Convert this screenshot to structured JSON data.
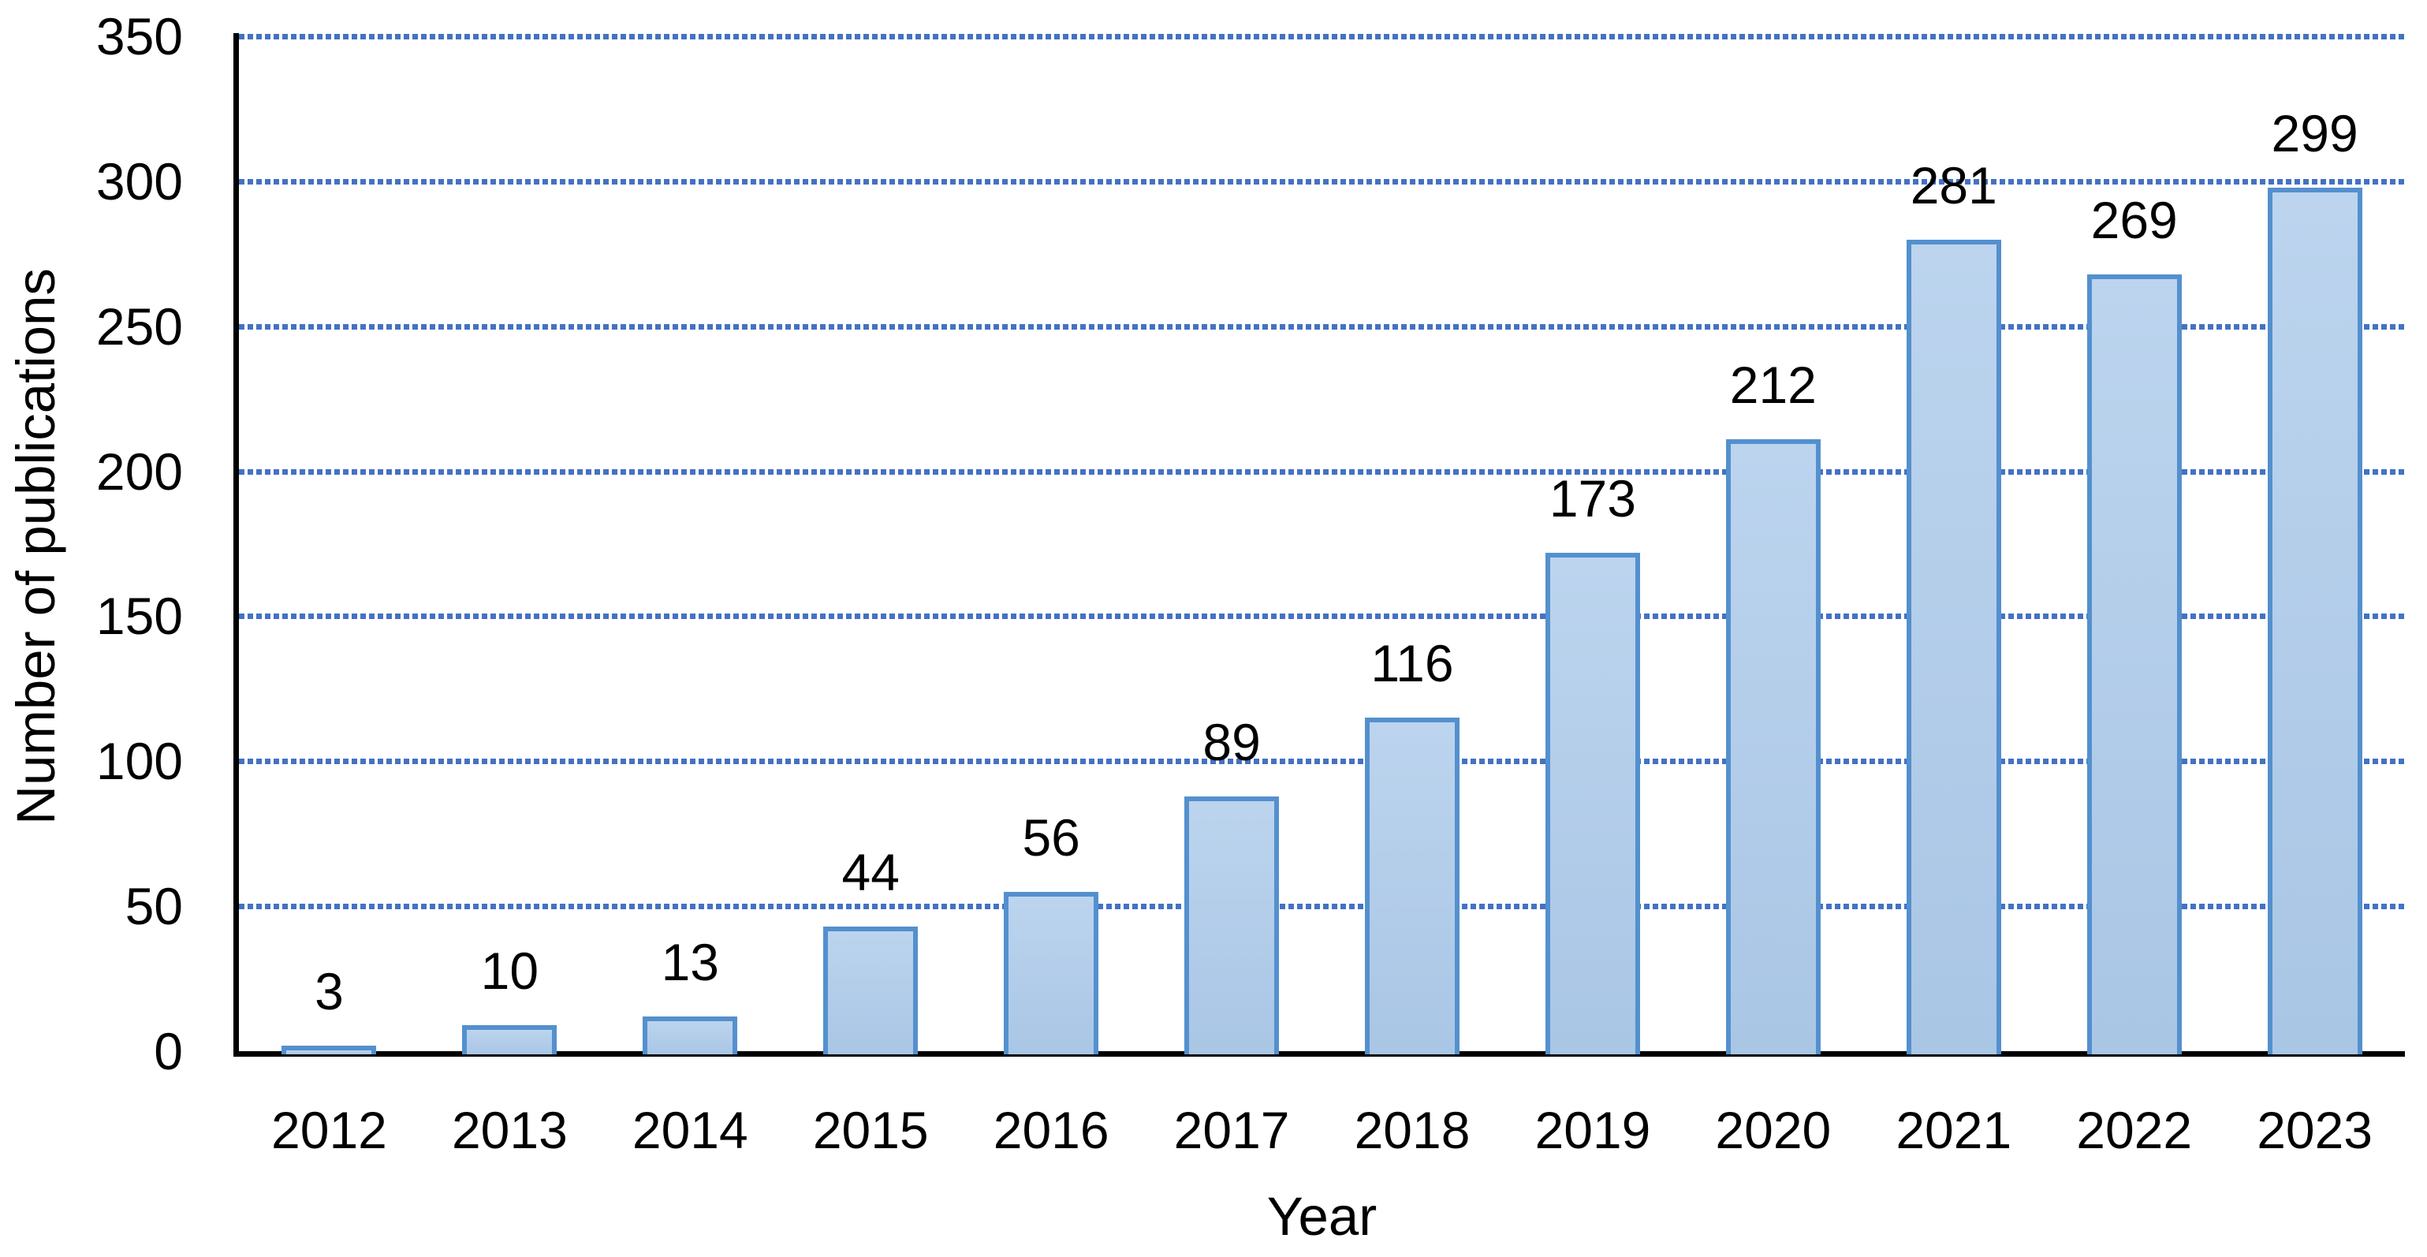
{
  "chart_data": {
    "type": "bar",
    "title": "",
    "categories": [
      "2012",
      "2013",
      "2014",
      "2015",
      "2016",
      "2017",
      "2018",
      "2019",
      "2020",
      "2021",
      "2022",
      "2023"
    ],
    "values": [
      3,
      10,
      13,
      44,
      56,
      89,
      116,
      173,
      212,
      281,
      269,
      299
    ],
    "data_labels": [
      "3",
      "10",
      "13",
      "44",
      "56",
      "89",
      "116",
      "173",
      "212",
      "281",
      "269",
      "299"
    ],
    "xlabel": "Year",
    "ylabel": "Number of publications",
    "ylim": [
      0,
      350
    ],
    "yticks": [
      0,
      50,
      100,
      150,
      200,
      250,
      300,
      350
    ],
    "ytick_labels": [
      "0",
      "50",
      "100",
      "150",
      "200",
      "250",
      "300",
      "350"
    ],
    "grid": "horizontal dotted lines at each y tick above 0",
    "legend_position": "none",
    "colors": {
      "bar_fill_top": "#BCD4EE",
      "bar_fill_bottom": "#A9C6E5",
      "bar_border": "#5490CE",
      "gridline": "#4472C4",
      "axis_line": "#000000",
      "text": "#000000",
      "background": "#FFFFFF"
    }
  }
}
